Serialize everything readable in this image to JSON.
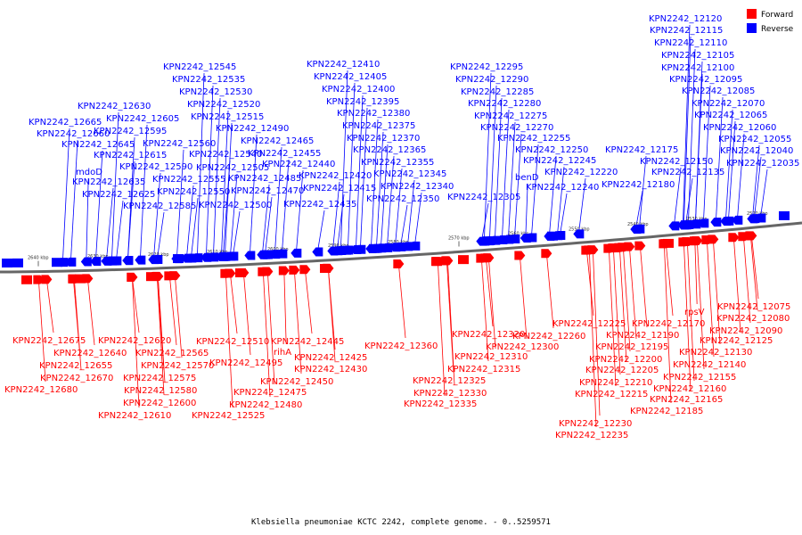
{
  "caption": "Klebsiella pneumoniae KCTC 2242, complete genome. - 0..5259571",
  "legend": [
    {
      "label": "Forward",
      "color": "#ff0000"
    },
    {
      "label": "Reverse",
      "color": "#0000ff"
    }
  ],
  "colors": {
    "forward": "#ff0000",
    "reverse": "#0000ff",
    "backbone": "#808080"
  },
  "ticks": [
    "2640 kbp",
    "2630 kbp",
    "2620 kbp",
    "2610 kbp",
    "2600 kbp",
    "2590 kbp",
    "2580 kbp",
    "2570 kbp",
    "2560 kbp",
    "2550 kbp",
    "2540 kbp",
    "2530 kbp",
    "2520 kbp"
  ],
  "reverse_genes": [
    "KPN2242_12665",
    "KPN2242_12660",
    "KPN2242_12645",
    "mdoD",
    "KPN2242_12635",
    "KPN2242_12625",
    "KPN2242_12630",
    "KPN2242_12615",
    "KPN2242_12605",
    "KPN2242_12595",
    "KPN2242_12590",
    "KPN2242_12585",
    "KPN2242_12560",
    "KPN2242_12555",
    "KPN2242_12550",
    "KPN2242_12545",
    "KPN2242_12540",
    "KPN2242_12535",
    "KPN2242_12530",
    "KPN2242_12520",
    "KPN2242_12515",
    "KPN2242_12505",
    "KPN2242_12500",
    "KPN2242_12490",
    "KPN2242_12485",
    "KPN2242_12470",
    "KPN2242_12465",
    "KPN2242_12455",
    "KPN2242_12440",
    "KPN2242_12435",
    "KPN2242_12420",
    "KPN2242_12415",
    "KPN2242_12410",
    "KPN2242_12405",
    "KPN2242_12400",
    "KPN2242_12395",
    "KPN2242_12380",
    "KPN2242_12375",
    "KPN2242_12370",
    "KPN2242_12365",
    "KPN2242_12355",
    "KPN2242_12350",
    "KPN2242_12345",
    "KPN2242_12340",
    "KPN2242_12305",
    "KPN2242_12295",
    "KPN2242_12290",
    "KPN2242_12285",
    "KPN2242_12280",
    "KPN2242_12275",
    "KPN2242_12270",
    "KPN2242_12255",
    "KPN2242_12250",
    "benD",
    "KPN2242_12245",
    "KPN2242_12240",
    "KPN2242_12220",
    "KPN2242_12175",
    "KPN2242_12180",
    "KPN2242_12150",
    "KPN2242_12135",
    "KPN2242_12120",
    "KPN2242_12115",
    "KPN2242_12110",
    "KPN2242_12105",
    "KPN2242_12100",
    "KPN2242_12095",
    "KPN2242_12085",
    "KPN2242_12070",
    "KPN2242_12065",
    "KPN2242_12060",
    "KPN2242_12055",
    "KPN2242_12040",
    "KPN2242_12035"
  ],
  "forward_genes": [
    "KPN2242_12675",
    "KPN2242_12640",
    "KPN2242_12655",
    "KPN2242_12670",
    "KPN2242_12680",
    "KPN2242_12620",
    "KPN2242_12565",
    "KPN2242_12570",
    "KPN2242_12575",
    "KPN2242_12580",
    "KPN2242_12600",
    "KPN2242_12610",
    "KPN2242_12510",
    "KPN2242_12495",
    "KPN2242_12475",
    "KPN2242_12480",
    "KPN2242_12525",
    "rihA",
    "KPN2242_12445",
    "KPN2242_12425",
    "KPN2242_12430",
    "KPN2242_12450",
    "KPN2242_12360",
    "KPN2242_12320",
    "KPN2242_12310",
    "KPN2242_12315",
    "KPN2242_12325",
    "KPN2242_12330",
    "KPN2242_12335",
    "KPN2242_12300",
    "KPN2242_12260",
    "KPN2242_12225",
    "KPN2242_12190",
    "KPN2242_12195",
    "KPN2242_12200",
    "KPN2242_12205",
    "KPN2242_12210",
    "KPN2242_12215",
    "KPN2242_12230",
    "KPN2242_12235",
    "KPN2242_12170",
    "rpsV",
    "KPN2242_12125",
    "KPN2242_12130",
    "KPN2242_12140",
    "KPN2242_12155",
    "KPN2242_12160",
    "KPN2242_12165",
    "KPN2242_12185",
    "KPN2242_12075",
    "KPN2242_12080",
    "KPN2242_12090"
  ]
}
